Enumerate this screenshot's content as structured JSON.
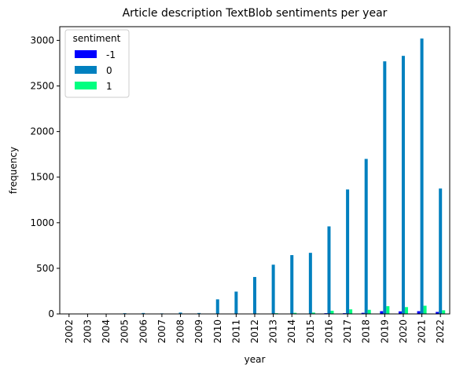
{
  "chart_data": {
    "type": "bar",
    "title": "Article description TextBlob sentiments per year",
    "xlabel": "year",
    "ylabel": "frequency",
    "ylim": [
      0,
      3150
    ],
    "yticks": [
      0,
      500,
      1000,
      1500,
      2000,
      2500,
      3000
    ],
    "grid": false,
    "legend_position": "top-left",
    "legend_title": "sentiment",
    "categories": [
      "2002",
      "2003",
      "2004",
      "2005",
      "2006",
      "2007",
      "2008",
      "2009",
      "2010",
      "2011",
      "2012",
      "2013",
      "2014",
      "2015",
      "2016",
      "2017",
      "2018",
      "2019",
      "2020",
      "2021",
      "2022"
    ],
    "series": [
      {
        "name": "-1",
        "color": "#0000ff",
        "values": [
          0,
          0,
          0,
          0,
          0,
          0,
          0,
          0,
          0,
          0,
          2,
          2,
          3,
          3,
          8,
          8,
          12,
          30,
          28,
          30,
          22
        ]
      },
      {
        "name": "0",
        "color": "#0080bf",
        "values": [
          2,
          2,
          3,
          8,
          10,
          6,
          15,
          10,
          160,
          245,
          405,
          540,
          645,
          670,
          960,
          1365,
          1700,
          2770,
          2830,
          3020,
          1375
        ]
      },
      {
        "name": "1",
        "color": "#00ff80",
        "values": [
          0,
          0,
          0,
          0,
          0,
          0,
          0,
          0,
          2,
          3,
          5,
          8,
          12,
          15,
          35,
          50,
          45,
          85,
          75,
          90,
          40
        ]
      }
    ]
  }
}
